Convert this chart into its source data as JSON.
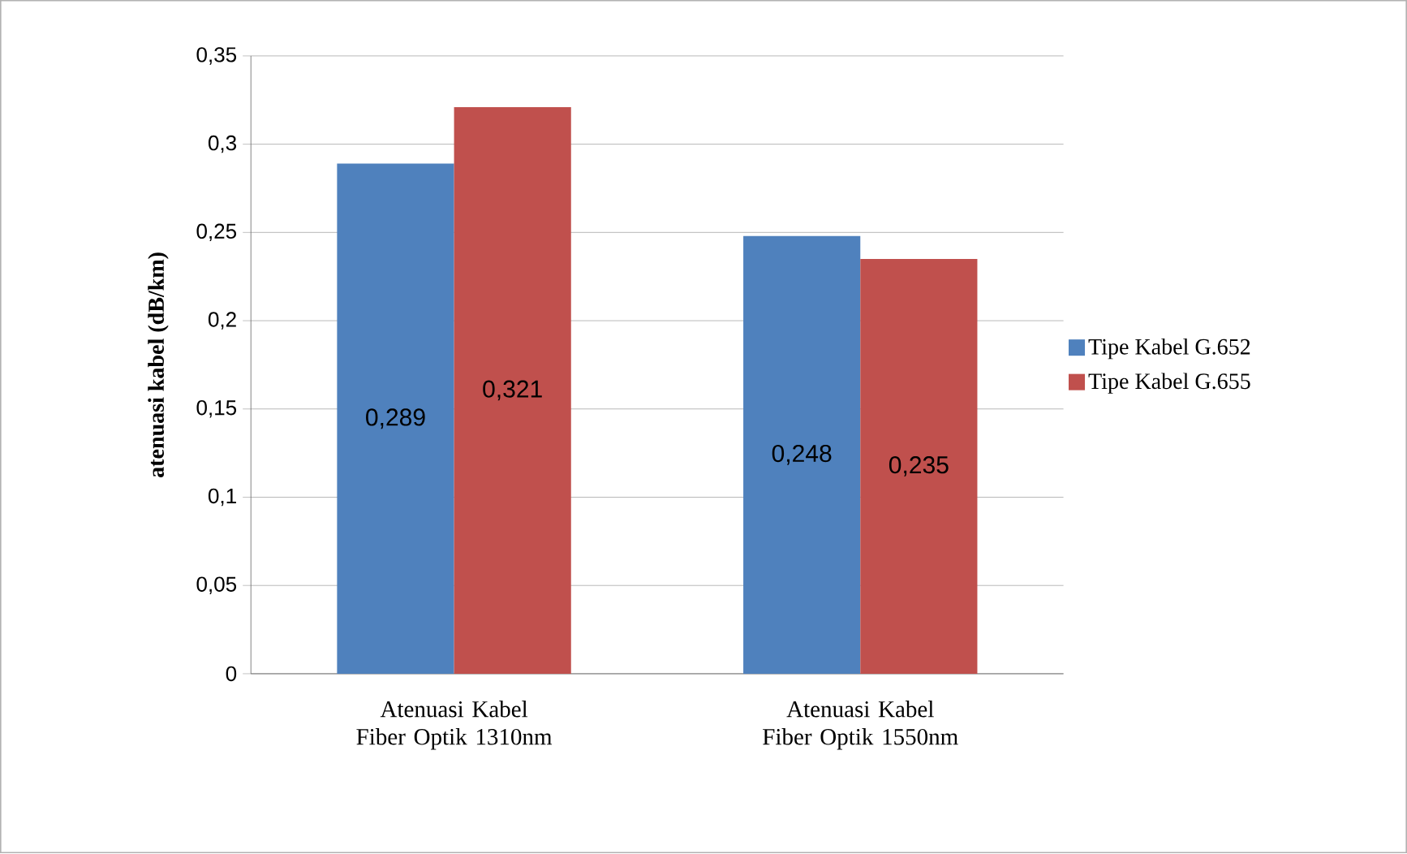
{
  "chart_data": {
    "type": "bar",
    "ylabel": "atenuasi kabel (dB/km)",
    "categories": [
      "Atenuasi Kabel Fiber Optik 1310nm",
      "Atenuasi Kabel Fiber Optik 1550nm"
    ],
    "series": [
      {
        "name": "Tipe Kabel G.652",
        "color": "#4f81bd",
        "values": [
          0.289,
          0.248
        ],
        "value_labels": [
          "0,289",
          "0,248"
        ]
      },
      {
        "name": "Tipe Kabel G.655",
        "color": "#c0504d",
        "values": [
          0.321,
          0.235
        ],
        "value_labels": [
          "0,321",
          "0,235"
        ]
      }
    ],
    "ylim": [
      0,
      0.35
    ],
    "yticks": [
      {
        "value": 0,
        "label": "0"
      },
      {
        "value": 0.05,
        "label": "0,05"
      },
      {
        "value": 0.1,
        "label": "0,1"
      },
      {
        "value": 0.15,
        "label": "0,15"
      },
      {
        "value": 0.2,
        "label": "0,2"
      },
      {
        "value": 0.25,
        "label": "0,25"
      },
      {
        "value": 0.3,
        "label": "0,3"
      },
      {
        "value": 0.35,
        "label": "0,35"
      }
    ],
    "grid": "y",
    "legend": "right"
  }
}
